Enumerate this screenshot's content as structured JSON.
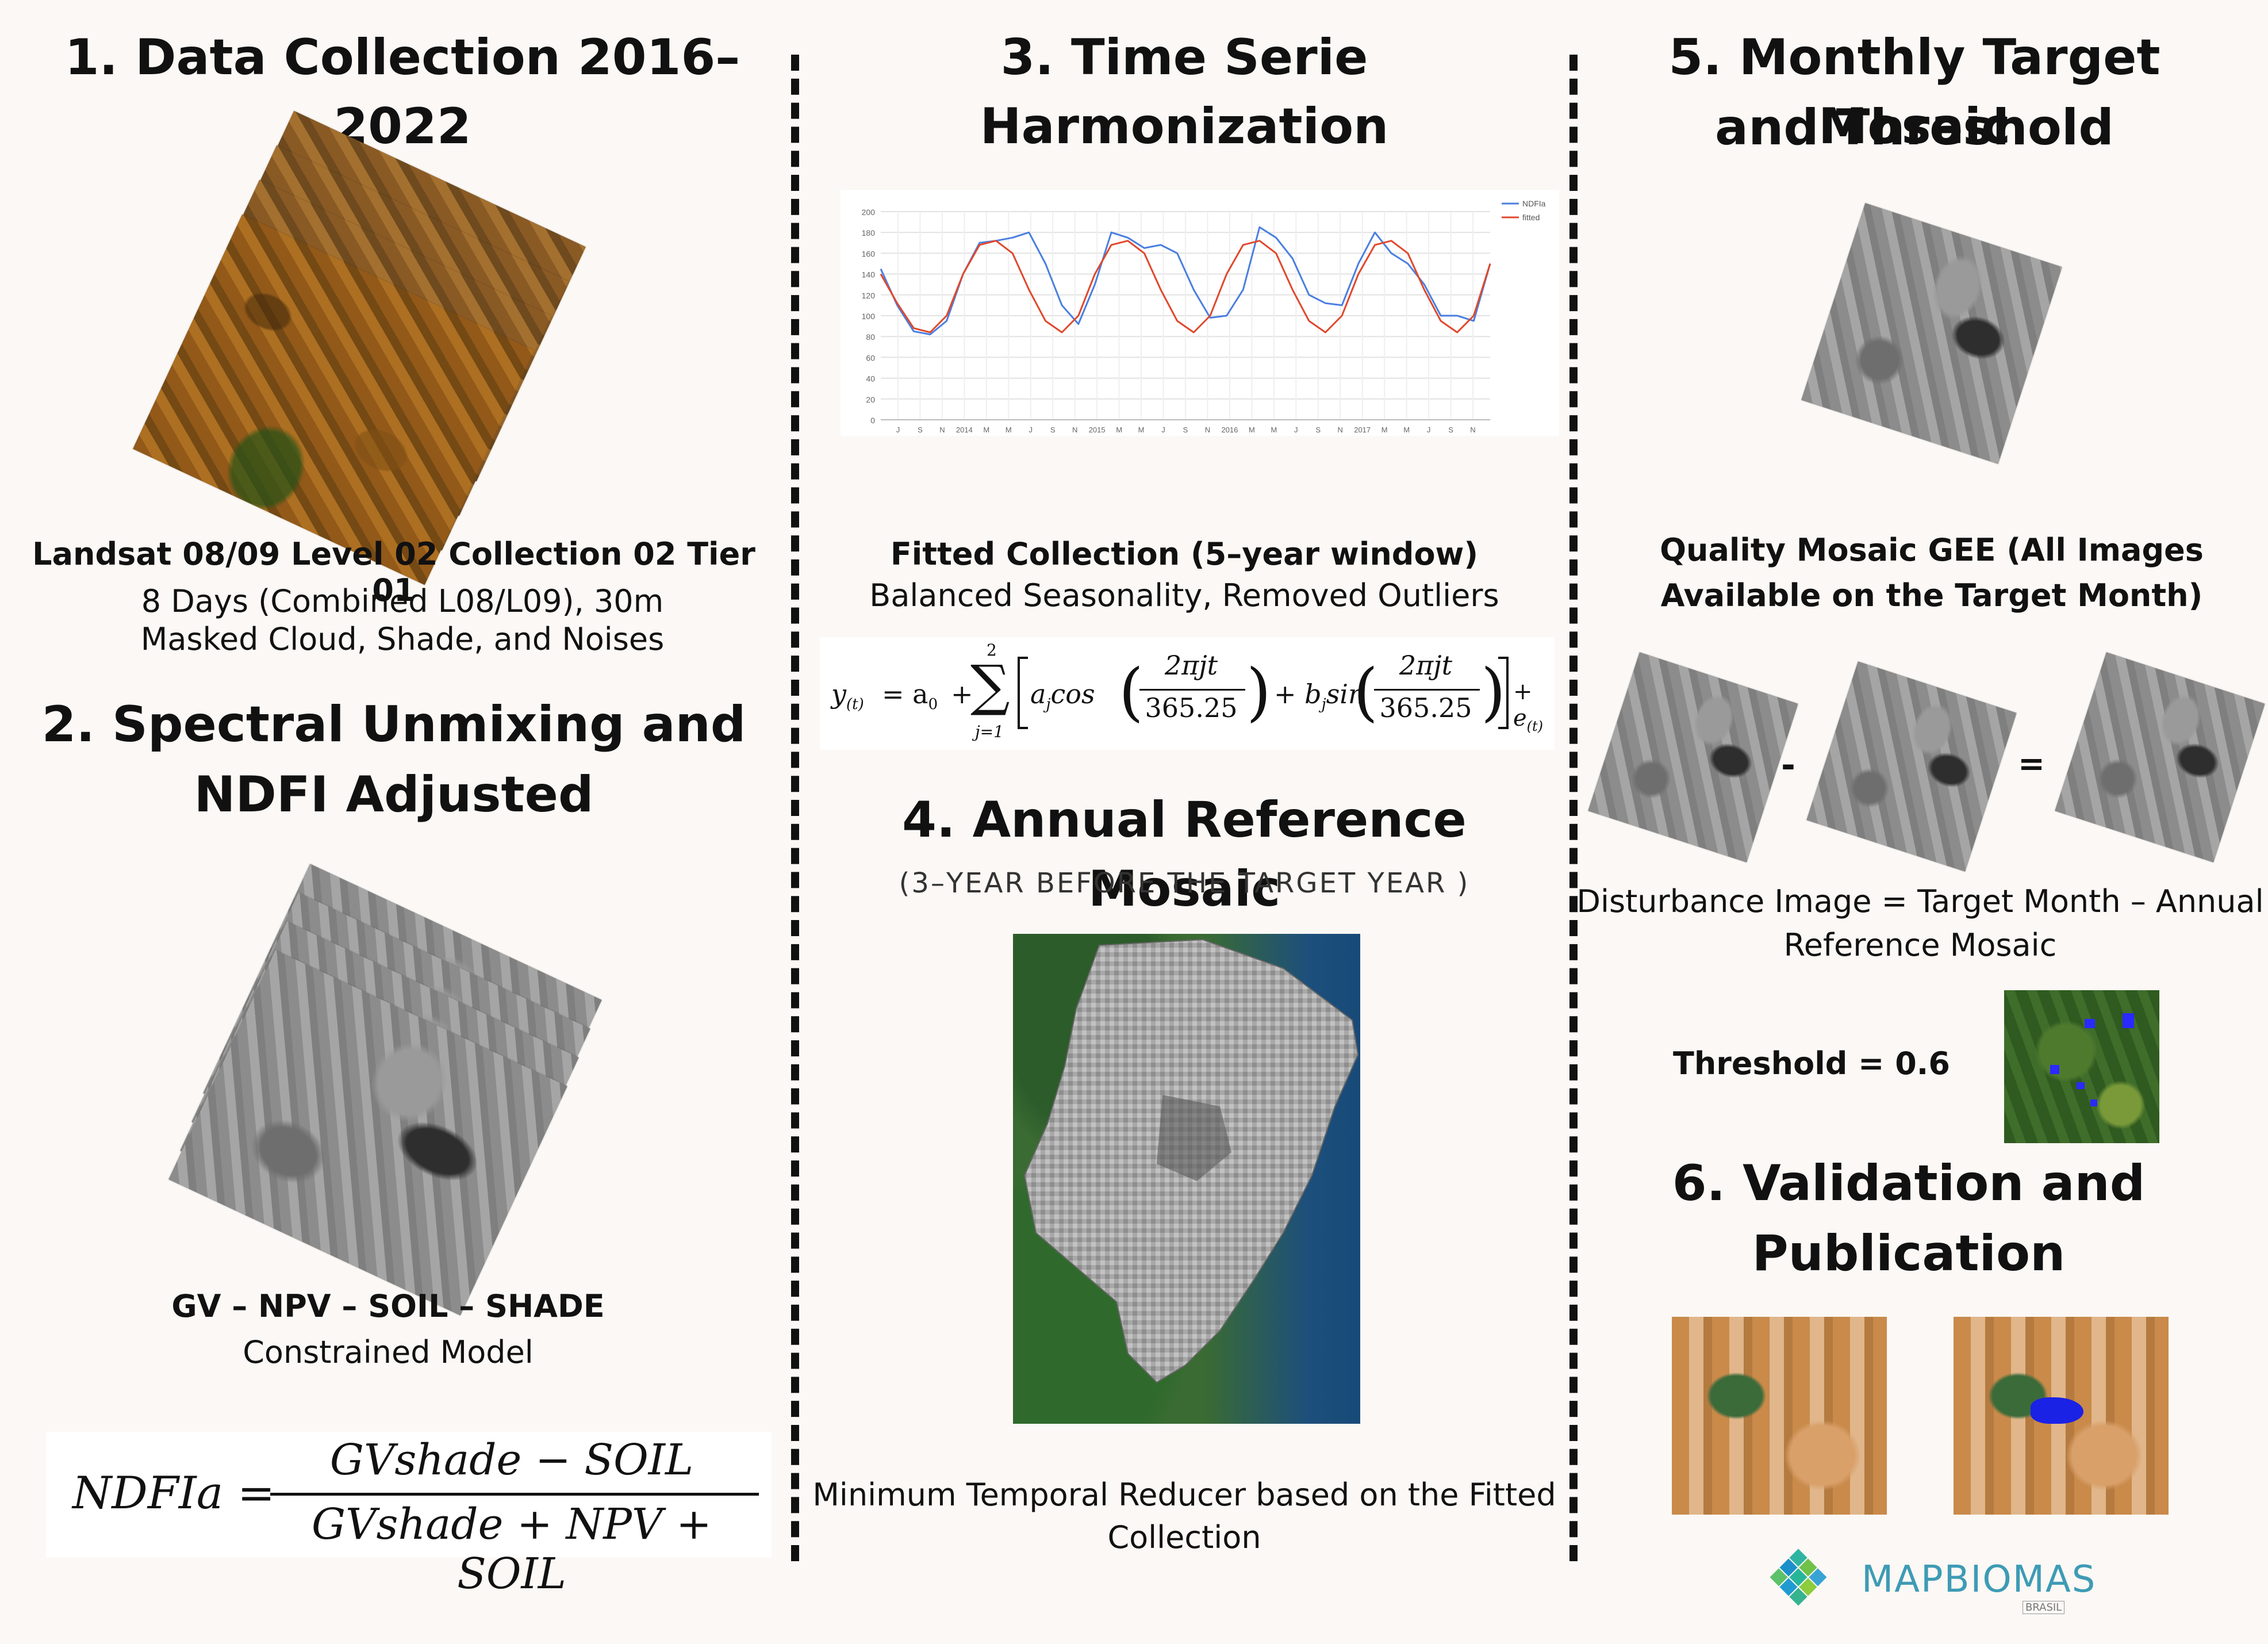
{
  "panel1": {
    "title": "1. Data Collection 2016–2022",
    "sensor": "Landsat 08/09 Level 02 Collection 02 Tier 01",
    "line1": "8 Days (Combined L08/L09), 30m",
    "line2": "Masked Cloud, Shade, and Noises"
  },
  "panel2": {
    "title_l1": "2. Spectral Unmixing and",
    "title_l2": "NDFI Adjusted",
    "components": "GV – NPV – SOIL – SHADE",
    "model": "Constrained Model",
    "formula": {
      "lhs": "NDFIa =",
      "numerator": "GVshade − SOIL",
      "denominator": "GVshade + NPV + SOIL"
    }
  },
  "panel3": {
    "title": "3. Time Serie Harmonization",
    "caption_bold": "Fitted Collection (5–year window)",
    "caption": "Balanced Seasonality, Removed Outliers",
    "formula": {
      "y": "y",
      "y_sub": "(t)",
      "eq": "= a",
      "a_sub": "0",
      "plus": "+",
      "sum_top": "2",
      "sum_sym": "∑",
      "sum_bot": "j=1",
      "cos": "a",
      "cos_sub": "j",
      "cos_txt": "cos",
      "frac_num": "2πjt",
      "frac_den": "365.25",
      "plus2": "+ b",
      "b_sub": "j",
      "sin_txt": "sin",
      "tail": "+ e",
      "e_sub": "(t)"
    }
  },
  "chart_data": {
    "type": "line",
    "y_ticks": [
      "0",
      "20",
      "40",
      "60",
      "80",
      "100",
      "120",
      "140",
      "160",
      "180",
      "200"
    ],
    "x_ticks": [
      "J",
      "S",
      "N",
      "2014",
      "M",
      "M",
      "J",
      "S",
      "N",
      "2015",
      "M",
      "M",
      "J",
      "S",
      "N",
      "2016",
      "M",
      "M",
      "J",
      "S",
      "N",
      "2017",
      "M",
      "M",
      "J",
      "S",
      "N"
    ],
    "ylim": [
      0,
      200
    ],
    "legend_placement": "top-right",
    "series": [
      {
        "name": "NDFIa",
        "color": "#4a7fe0",
        "values": [
          145,
          110,
          85,
          82,
          95,
          140,
          170,
          172,
          175,
          180,
          150,
          110,
          92,
          130,
          180,
          175,
          165,
          168,
          160,
          125,
          98,
          100,
          125,
          185,
          175,
          155,
          120,
          112,
          110,
          150,
          180,
          160,
          150,
          130,
          100,
          100,
          95,
          150
        ]
      },
      {
        "name": "fitted",
        "color": "#e0482c",
        "values": [
          140,
          112,
          88,
          84,
          100,
          140,
          168,
          172,
          160,
          125,
          95,
          84,
          100,
          140,
          168,
          172,
          160,
          125,
          95,
          84,
          100,
          140,
          168,
          172,
          160,
          125,
          95,
          84,
          100,
          140,
          168,
          172,
          160,
          125,
          95,
          84,
          100,
          150
        ]
      }
    ]
  },
  "panel4": {
    "title": "4. Annual Reference Mosaic",
    "subtitle": "(3–YEAR BEFORE THE TARGET YEAR )",
    "caption_l1": "Minimum Temporal Reducer based on the Fitted",
    "caption_l2": "Collection"
  },
  "panel5": {
    "title_l1": "5. Monthly Target Mosaic",
    "title_l2": "and Threshold",
    "quality_l1": "Quality Mosaic GEE (All Images",
    "quality_l2": "Available on the Target Month)",
    "minus": "-",
    "equals": "=",
    "disturb_l1": "Disturbance Image = Target Month – Annual",
    "disturb_l2": "Reference Mosaic",
    "threshold": "Threshold = 0.6"
  },
  "panel6": {
    "title_l1": "6.  Validation and",
    "title_l2": "Publication"
  },
  "logo": {
    "name": "MAPBIOMAS",
    "country": "BRASIL"
  }
}
